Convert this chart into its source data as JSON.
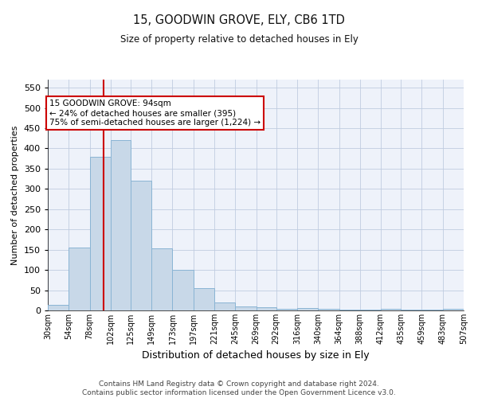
{
  "title1": "15, GOODWIN GROVE, ELY, CB6 1TD",
  "title2": "Size of property relative to detached houses in Ely",
  "xlabel": "Distribution of detached houses by size in Ely",
  "ylabel": "Number of detached properties",
  "footer1": "Contains HM Land Registry data © Crown copyright and database right 2024.",
  "footer2": "Contains public sector information licensed under the Open Government Licence v3.0.",
  "bar_color": "#c8d8e8",
  "bar_edge_color": "#8ab4d4",
  "grid_color": "#c0cce0",
  "vline_x": 94,
  "vline_color": "#cc0000",
  "annotation_box_color": "#cc0000",
  "annotation_text1": "15 GOODWIN GROVE: 94sqm",
  "annotation_text2": "← 24% of detached houses are smaller (395)",
  "annotation_text3": "75% of semi-detached houses are larger (1,224) →",
  "ylim": [
    0,
    570
  ],
  "yticks": [
    0,
    50,
    100,
    150,
    200,
    250,
    300,
    350,
    400,
    450,
    500,
    550
  ],
  "bin_edges": [
    30,
    54,
    78,
    102,
    125,
    149,
    173,
    197,
    221,
    245,
    269,
    292,
    316,
    340,
    364,
    388,
    412,
    435,
    459,
    483,
    507
  ],
  "bar_heights": [
    13,
    155,
    380,
    420,
    320,
    153,
    100,
    55,
    19,
    10,
    7,
    3,
    5,
    3,
    2,
    1,
    3,
    2,
    2,
    3
  ],
  "tick_labels": [
    "30sqm",
    "54sqm",
    "78sqm",
    "102sqm",
    "125sqm",
    "149sqm",
    "173sqm",
    "197sqm",
    "221sqm",
    "245sqm",
    "269sqm",
    "292sqm",
    "316sqm",
    "340sqm",
    "364sqm",
    "388sqm",
    "412sqm",
    "435sqm",
    "459sqm",
    "483sqm",
    "507sqm"
  ]
}
